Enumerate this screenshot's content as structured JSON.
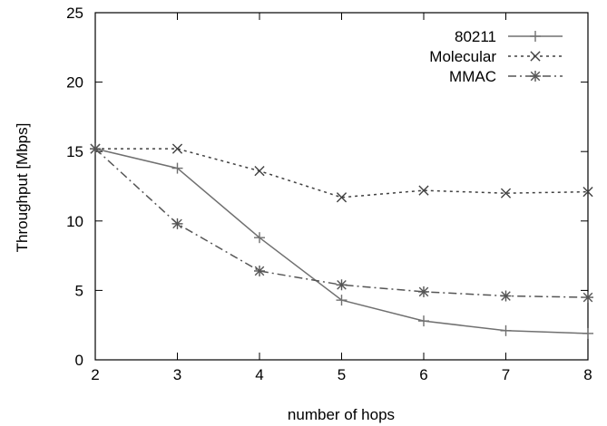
{
  "chart_data": {
    "type": "line",
    "title": "",
    "xlabel": "number of hops",
    "ylabel": "Throughput [Mbps]",
    "xlim": [
      2,
      8
    ],
    "ylim": [
      0,
      25
    ],
    "xticks": [
      "2",
      "3",
      "4",
      "5",
      "6",
      "7",
      "8"
    ],
    "yticks": [
      "0",
      "5",
      "10",
      "15",
      "20",
      "25"
    ],
    "grid": false,
    "legend_position": "top-right",
    "x": [
      2,
      3,
      4,
      5,
      6,
      7,
      8
    ],
    "series": [
      {
        "name": "80211",
        "values": [
          15.2,
          13.8,
          8.8,
          4.3,
          2.8,
          2.1,
          1.9
        ],
        "color": "#707070",
        "dash": "solid",
        "marker": "plus"
      },
      {
        "name": "Molecular",
        "values": [
          15.2,
          15.2,
          13.6,
          11.7,
          12.2,
          12.0,
          12.1
        ],
        "color": "#404040",
        "dash": "dotted",
        "marker": "cross"
      },
      {
        "name": "MMAC",
        "values": [
          15.2,
          9.8,
          6.4,
          5.4,
          4.9,
          4.6,
          4.5
        ],
        "color": "#555555",
        "dash": "dashdot",
        "marker": "star"
      }
    ]
  }
}
